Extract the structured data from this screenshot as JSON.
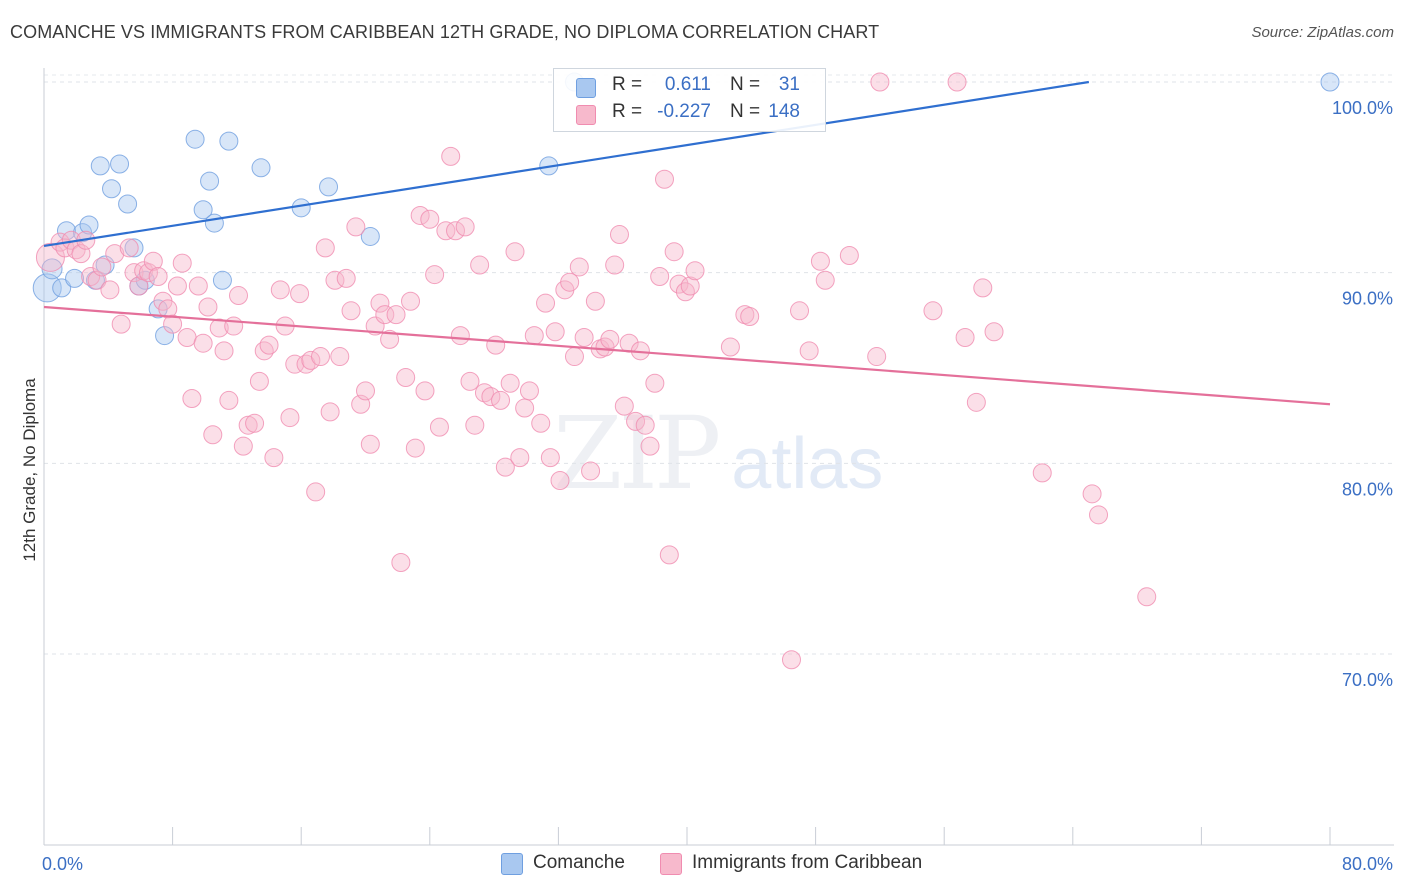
{
  "header": {
    "title": "COMANCHE VS IMMIGRANTS FROM CARIBBEAN 12TH GRADE, NO DIPLOMA CORRELATION CHART",
    "source": "Source: ZipAtlas.com"
  },
  "watermark": {
    "zip": "ZIP",
    "atlas": "atlas"
  },
  "legend_top": [
    {
      "r_label": "R =",
      "r_value": "0.611",
      "n_label": "N =",
      "n_value": "31",
      "color": "#a9c8f0"
    },
    {
      "r_label": "R =",
      "r_value": "-0.227",
      "n_label": "N =",
      "n_value": "148",
      "color": "#f7b9cc"
    }
  ],
  "legend_bottom": [
    {
      "label": "Comanche",
      "color": "#a9c8f0"
    },
    {
      "label": "Immigrants from Caribbean",
      "color": "#f7b9cc"
    }
  ],
  "chart_data": {
    "type": "scatter",
    "title": "COMANCHE VS IMMIGRANTS FROM CARIBBEAN 12TH GRADE, NO DIPLOMA CORRELATION CHART",
    "xlabel": "",
    "ylabel": "12th Grade, No Diploma",
    "xlim": [
      0,
      80
    ],
    "ylim": [
      60,
      102
    ],
    "x_tick_labels": [
      "0.0%",
      "80.0%"
    ],
    "y_ticks": [
      70,
      80,
      90,
      100
    ],
    "y_tick_labels": [
      "70.0%",
      "80.0%",
      "90.0%",
      "100.0%"
    ],
    "grid": true,
    "legend_position": "top-center",
    "series": [
      {
        "name": "Comanche",
        "color": "#6f9fe0",
        "fill": "#a9c8f0",
        "trend": {
          "x": [
            0,
            65
          ],
          "y": [
            91.4,
            100
          ]
        },
        "points": [
          [
            0.2,
            89.2,
            14
          ],
          [
            0.5,
            90.2,
            10
          ],
          [
            1.1,
            89.2,
            9
          ],
          [
            1.4,
            92.2,
            9
          ],
          [
            1.9,
            89.7,
            9
          ],
          [
            2.4,
            92.1,
            9
          ],
          [
            2.8,
            92.5,
            9
          ],
          [
            3.2,
            89.6,
            9
          ],
          [
            3.5,
            95.6,
            9
          ],
          [
            3.8,
            90.4,
            9
          ],
          [
            4.2,
            94.4,
            9
          ],
          [
            4.7,
            95.7,
            9
          ],
          [
            5.2,
            93.6,
            9
          ],
          [
            5.6,
            91.3,
            9
          ],
          [
            5.9,
            89.3,
            9
          ],
          [
            6.3,
            89.6,
            9
          ],
          [
            7.1,
            88.1,
            9
          ],
          [
            7.5,
            86.7,
            9
          ],
          [
            9.4,
            97.0,
            9
          ],
          [
            9.9,
            93.3,
            9
          ],
          [
            10.3,
            94.8,
            9
          ],
          [
            10.6,
            92.6,
            9
          ],
          [
            11.1,
            89.6,
            9
          ],
          [
            11.5,
            96.9,
            9
          ],
          [
            13.5,
            95.5,
            9
          ],
          [
            16.0,
            93.4,
            9
          ],
          [
            17.7,
            94.5,
            9
          ],
          [
            20.3,
            91.9,
            9
          ],
          [
            31.4,
            95.6,
            9
          ],
          [
            33.0,
            100.0,
            9
          ],
          [
            80.0,
            100.0,
            9
          ]
        ]
      },
      {
        "name": "Immigrants from Caribbean",
        "color": "#f08cb0",
        "fill": "#f7b9cc",
        "trend": {
          "x": [
            0,
            80
          ],
          "y": [
            88.2,
            83.1
          ]
        },
        "points": [
          [
            0.4,
            90.8,
            14
          ],
          [
            1.0,
            91.6,
            9
          ],
          [
            1.3,
            91.3,
            9
          ],
          [
            1.7,
            91.7,
            9
          ],
          [
            2.0,
            91.2,
            9
          ],
          [
            2.3,
            91.0,
            9
          ],
          [
            2.6,
            91.7,
            9
          ],
          [
            2.9,
            89.8,
            9
          ],
          [
            3.3,
            89.6,
            9
          ],
          [
            3.6,
            90.3,
            9
          ],
          [
            4.1,
            89.1,
            9
          ],
          [
            4.4,
            91.0,
            9
          ],
          [
            4.8,
            87.3,
            9
          ],
          [
            5.3,
            91.3,
            9
          ],
          [
            5.6,
            90.0,
            9
          ],
          [
            5.9,
            89.3,
            9
          ],
          [
            6.2,
            90.1,
            9
          ],
          [
            6.5,
            90.0,
            9
          ],
          [
            6.8,
            90.6,
            9
          ],
          [
            7.1,
            89.8,
            9
          ],
          [
            7.4,
            88.5,
            9
          ],
          [
            7.7,
            88.1,
            9
          ],
          [
            8.0,
            87.3,
            9
          ],
          [
            8.3,
            89.3,
            9
          ],
          [
            8.6,
            90.5,
            9
          ],
          [
            8.9,
            86.6,
            9
          ],
          [
            9.2,
            83.4,
            9
          ],
          [
            9.6,
            89.3,
            9
          ],
          [
            9.9,
            86.3,
            9
          ],
          [
            10.2,
            88.2,
            9
          ],
          [
            10.5,
            81.5,
            9
          ],
          [
            10.9,
            87.1,
            9
          ],
          [
            11.2,
            85.9,
            9
          ],
          [
            11.5,
            83.3,
            9
          ],
          [
            11.8,
            87.2,
            9
          ],
          [
            12.1,
            88.8,
            9
          ],
          [
            12.4,
            80.9,
            9
          ],
          [
            12.7,
            82.0,
            9
          ],
          [
            13.1,
            82.1,
            9
          ],
          [
            13.4,
            84.3,
            9
          ],
          [
            13.7,
            85.9,
            9
          ],
          [
            14.0,
            86.2,
            9
          ],
          [
            14.3,
            80.3,
            9
          ],
          [
            14.7,
            89.1,
            9
          ],
          [
            15.0,
            87.2,
            9
          ],
          [
            15.3,
            82.4,
            9
          ],
          [
            15.6,
            85.2,
            9
          ],
          [
            15.9,
            88.9,
            9
          ],
          [
            16.3,
            85.2,
            9
          ],
          [
            16.6,
            85.4,
            9
          ],
          [
            16.9,
            78.5,
            9
          ],
          [
            17.2,
            85.6,
            9
          ],
          [
            17.5,
            91.3,
            9
          ],
          [
            17.8,
            82.7,
            9
          ],
          [
            18.1,
            89.6,
            9
          ],
          [
            18.4,
            85.6,
            9
          ],
          [
            18.8,
            89.7,
            9
          ],
          [
            19.1,
            88.0,
            9
          ],
          [
            19.4,
            92.4,
            9
          ],
          [
            19.7,
            83.1,
            9
          ],
          [
            20.0,
            83.8,
            9
          ],
          [
            20.3,
            81.0,
            9
          ],
          [
            20.6,
            87.2,
            9
          ],
          [
            20.9,
            88.4,
            9
          ],
          [
            21.2,
            87.8,
            9
          ],
          [
            21.5,
            86.5,
            9
          ],
          [
            21.9,
            87.8,
            9
          ],
          [
            22.2,
            74.8,
            9
          ],
          [
            22.5,
            84.5,
            9
          ],
          [
            22.8,
            88.5,
            9
          ],
          [
            23.1,
            80.8,
            9
          ],
          [
            23.4,
            93.0,
            9
          ],
          [
            23.7,
            83.8,
            9
          ],
          [
            24.0,
            92.8,
            9
          ],
          [
            24.3,
            89.9,
            9
          ],
          [
            24.6,
            81.9,
            9
          ],
          [
            25.0,
            92.2,
            9
          ],
          [
            25.3,
            96.1,
            9
          ],
          [
            25.6,
            92.2,
            9
          ],
          [
            25.9,
            86.7,
            9
          ],
          [
            26.2,
            92.4,
            9
          ],
          [
            26.5,
            84.3,
            9
          ],
          [
            26.8,
            82.0,
            9
          ],
          [
            27.1,
            90.4,
            9
          ],
          [
            27.4,
            83.7,
            9
          ],
          [
            27.8,
            83.5,
            9
          ],
          [
            28.1,
            86.2,
            9
          ],
          [
            28.4,
            83.3,
            9
          ],
          [
            28.7,
            79.8,
            9
          ],
          [
            29.0,
            84.2,
            9
          ],
          [
            29.3,
            91.1,
            9
          ],
          [
            29.6,
            80.3,
            9
          ],
          [
            29.9,
            82.9,
            9
          ],
          [
            30.2,
            83.8,
            9
          ],
          [
            30.5,
            86.7,
            9
          ],
          [
            30.9,
            82.1,
            9
          ],
          [
            31.2,
            88.4,
            9
          ],
          [
            31.5,
            80.3,
            9
          ],
          [
            31.8,
            86.9,
            9
          ],
          [
            32.1,
            79.1,
            9
          ],
          [
            32.4,
            89.1,
            9
          ],
          [
            32.7,
            89.5,
            9
          ],
          [
            33.0,
            85.6,
            9
          ],
          [
            33.3,
            90.3,
            9
          ],
          [
            33.6,
            86.6,
            9
          ],
          [
            34.0,
            79.6,
            9
          ],
          [
            34.3,
            88.5,
            9
          ],
          [
            34.6,
            86.0,
            9
          ],
          [
            34.9,
            86.1,
            9
          ],
          [
            35.2,
            86.5,
            9
          ],
          [
            35.5,
            90.4,
            9
          ],
          [
            35.8,
            92.0,
            9
          ],
          [
            36.1,
            83.0,
            9
          ],
          [
            36.4,
            86.3,
            9
          ],
          [
            36.8,
            82.2,
            9
          ],
          [
            37.1,
            85.9,
            9
          ],
          [
            37.4,
            82.0,
            9
          ],
          [
            37.7,
            80.9,
            9
          ],
          [
            38.0,
            84.2,
            9
          ],
          [
            38.3,
            89.8,
            9
          ],
          [
            38.6,
            94.9,
            9
          ],
          [
            38.9,
            75.2,
            9
          ],
          [
            39.2,
            91.1,
            9
          ],
          [
            39.5,
            89.4,
            9
          ],
          [
            39.9,
            89.0,
            9
          ],
          [
            40.2,
            89.3,
            9
          ],
          [
            40.5,
            90.1,
            9
          ],
          [
            42.7,
            86.1,
            9
          ],
          [
            43.6,
            87.8,
            9
          ],
          [
            43.9,
            87.7,
            9
          ],
          [
            48.3,
            90.6,
            9
          ],
          [
            48.6,
            89.6,
            9
          ],
          [
            47.0,
            88.0,
            9
          ],
          [
            47.6,
            85.9,
            9
          ],
          [
            46.5,
            69.7,
            9
          ],
          [
            51.8,
            85.6,
            9
          ],
          [
            55.3,
            88.0,
            9
          ],
          [
            52.0,
            100.0,
            9
          ],
          [
            56.8,
            100.0,
            9
          ],
          [
            57.3,
            86.6,
            9
          ],
          [
            58.0,
            83.2,
            9
          ],
          [
            59.1,
            86.9,
            9
          ],
          [
            62.1,
            79.5,
            9
          ],
          [
            65.2,
            78.4,
            9
          ],
          [
            65.6,
            77.3,
            9
          ],
          [
            68.6,
            73.0,
            9
          ],
          [
            50.1,
            90.9,
            9
          ],
          [
            58.4,
            89.2,
            9
          ]
        ]
      }
    ]
  }
}
